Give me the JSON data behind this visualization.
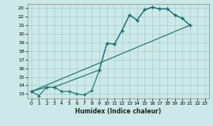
{
  "xlabel": "Humidex (Indice chaleur)",
  "bg_color": "#cce8e8",
  "grid_color": "#aacccc",
  "line_color": "#1a7070",
  "xlim": [
    -0.5,
    23.5
  ],
  "ylim": [
    12.5,
    23.5
  ],
  "xticks": [
    0,
    1,
    2,
    3,
    4,
    5,
    6,
    7,
    8,
    9,
    10,
    11,
    12,
    13,
    14,
    15,
    16,
    17,
    18,
    19,
    20,
    21,
    22,
    23
  ],
  "yticks": [
    13,
    14,
    15,
    16,
    17,
    18,
    19,
    20,
    21,
    22,
    23
  ],
  "curve1_x": [
    0,
    1,
    2,
    3,
    4,
    5,
    6,
    7,
    8,
    9,
    10,
    11,
    12,
    13,
    14,
    15,
    16,
    17,
    18,
    19,
    20,
    21
  ],
  "curve1_y": [
    13.3,
    12.8,
    13.8,
    13.8,
    13.3,
    13.3,
    13.0,
    12.9,
    13.4,
    15.8,
    18.9,
    18.8,
    20.4,
    22.2,
    21.6,
    22.8,
    23.1,
    22.9,
    22.9,
    22.2,
    21.8,
    21.0
  ],
  "curve2_x": [
    0,
    21
  ],
  "curve2_y": [
    13.3,
    21.0
  ],
  "curve3_x": [
    0,
    2,
    3,
    9,
    10,
    11,
    12,
    13,
    14,
    15,
    16,
    17,
    18,
    19,
    20,
    21
  ],
  "curve3_y": [
    13.3,
    13.8,
    13.8,
    15.8,
    18.9,
    18.8,
    20.4,
    22.2,
    21.6,
    22.8,
    23.1,
    22.9,
    22.9,
    22.2,
    21.8,
    21.0
  ]
}
